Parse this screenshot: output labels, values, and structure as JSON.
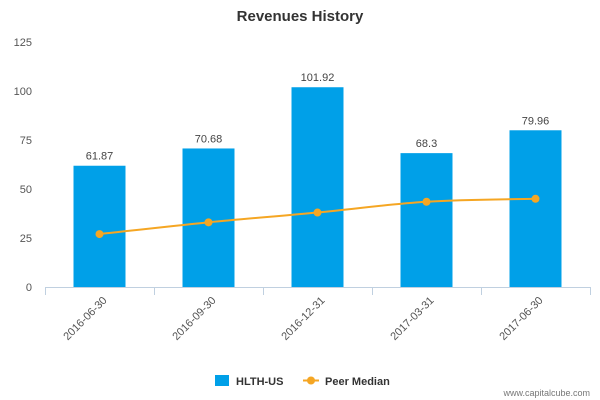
{
  "chart_data": {
    "type": "bar",
    "title": "Revenues History",
    "categories": [
      "2016-06-30",
      "2016-09-30",
      "2016-12-31",
      "2017-03-31",
      "2017-06-30"
    ],
    "series": [
      {
        "name": "HLTH-US",
        "type": "bar",
        "color": "#00a0e8",
        "values": [
          61.87,
          70.68,
          101.92,
          68.3,
          79.96
        ],
        "labels": [
          "61.87",
          "70.68",
          "101.92",
          "68.3",
          "79.96"
        ]
      },
      {
        "name": "Peer Median",
        "type": "line",
        "color": "#f5a623",
        "values": [
          27.0,
          33.0,
          38.0,
          43.5,
          45.0
        ]
      }
    ],
    "ylim": [
      0,
      125
    ],
    "yticks": [
      0,
      25,
      50,
      75,
      100,
      125
    ],
    "ytick_labels": [
      "0",
      "25",
      "50",
      "75",
      "100",
      "125"
    ],
    "xlabel": "",
    "ylabel": "",
    "grid": false,
    "legend_position": "bottom-center",
    "legend": [
      {
        "name": "HLTH-US",
        "marker": "square",
        "color": "#00a0e8"
      },
      {
        "name": "Peer Median",
        "marker": "line-dot",
        "color": "#f5a623"
      }
    ]
  },
  "watermark": "www.capitalcube.com"
}
